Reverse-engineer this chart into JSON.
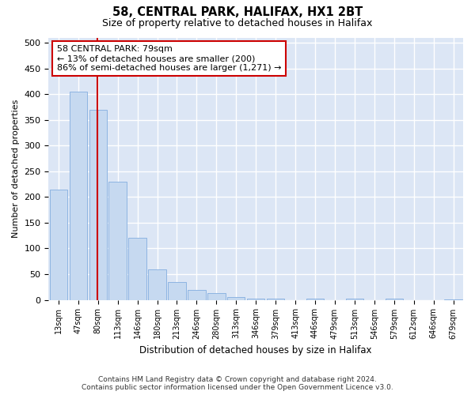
{
  "title": "58, CENTRAL PARK, HALIFAX, HX1 2BT",
  "subtitle": "Size of property relative to detached houses in Halifax",
  "xlabel": "Distribution of detached houses by size in Halifax",
  "ylabel": "Number of detached properties",
  "categories": [
    "13sqm",
    "47sqm",
    "80sqm",
    "113sqm",
    "146sqm",
    "180sqm",
    "213sqm",
    "246sqm",
    "280sqm",
    "313sqm",
    "346sqm",
    "379sqm",
    "413sqm",
    "446sqm",
    "479sqm",
    "513sqm",
    "546sqm",
    "579sqm",
    "612sqm",
    "646sqm",
    "679sqm"
  ],
  "values": [
    215,
    405,
    370,
    230,
    120,
    60,
    35,
    20,
    13,
    5,
    3,
    2,
    0,
    2,
    0,
    2,
    0,
    2,
    0,
    0,
    1
  ],
  "bar_color": "#c6d9f0",
  "bar_edge_color": "#8db4e2",
  "background_color": "#dce6f5",
  "grid_color": "#ffffff",
  "property_line_color": "#cc0000",
  "annotation_text": "58 CENTRAL PARK: 79sqm\n← 13% of detached houses are smaller (200)\n86% of semi-detached houses are larger (1,271) →",
  "annotation_box_color": "#cc0000",
  "ylim": [
    0,
    510
  ],
  "yticks": [
    0,
    50,
    100,
    150,
    200,
    250,
    300,
    350,
    400,
    450,
    500
  ],
  "footer_line1": "Contains HM Land Registry data © Crown copyright and database right 2024.",
  "footer_line2": "Contains public sector information licensed under the Open Government Licence v3.0."
}
